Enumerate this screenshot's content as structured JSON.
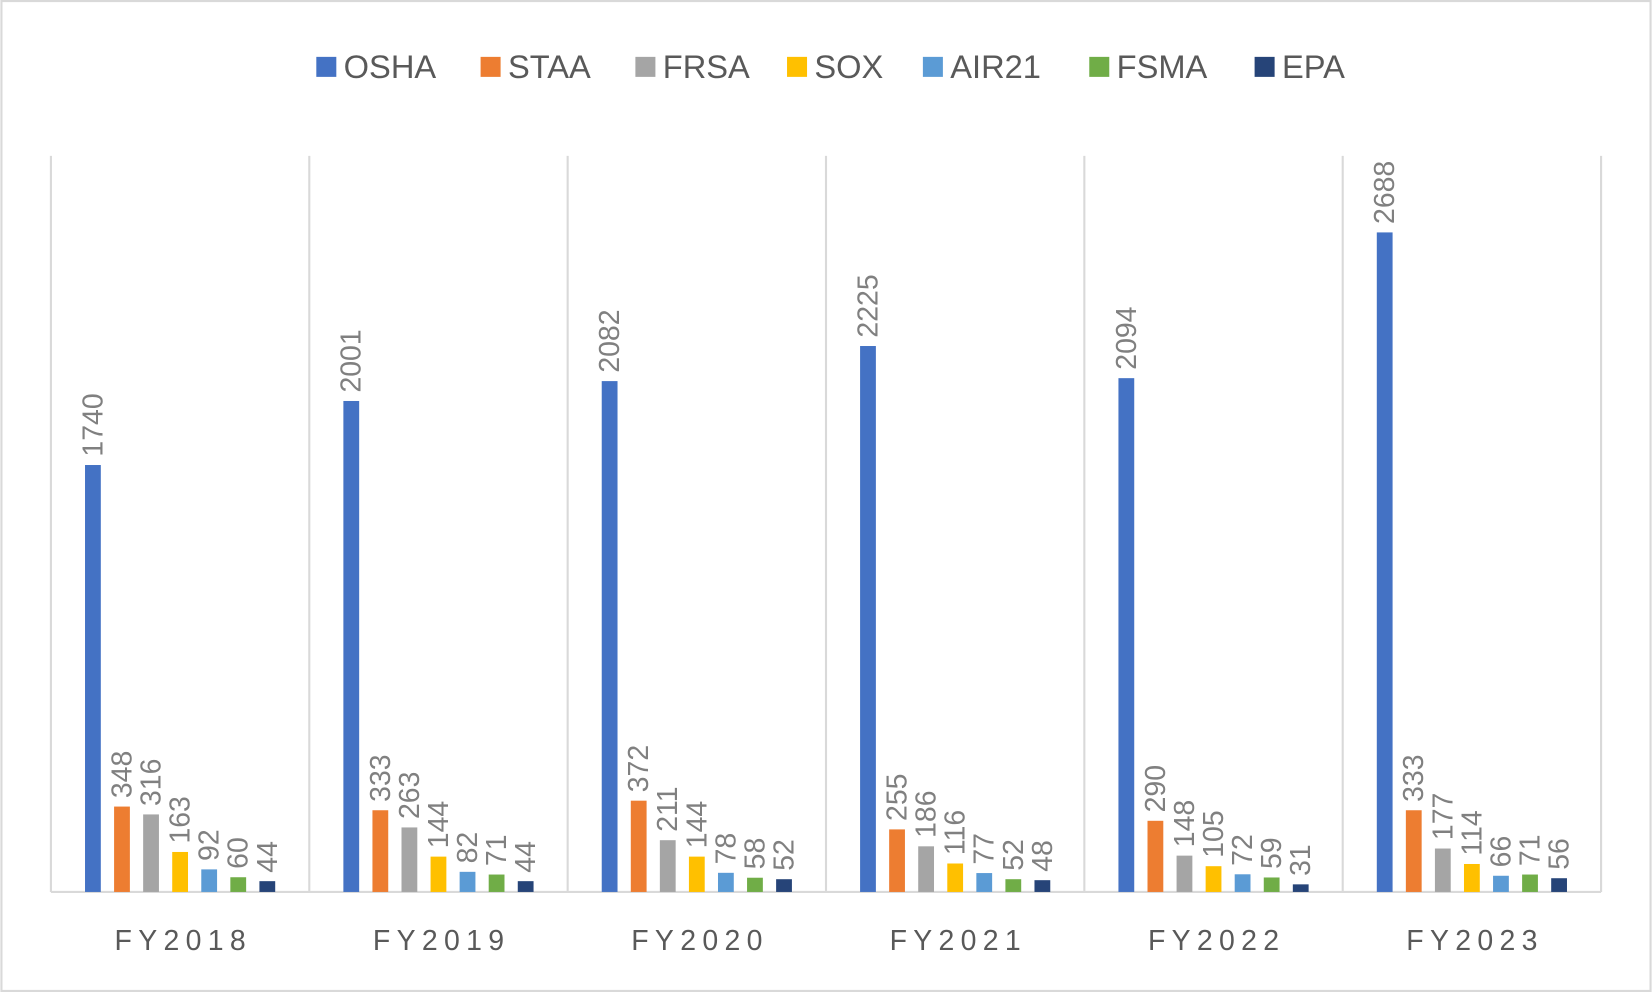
{
  "chart_data": {
    "type": "bar",
    "title": "",
    "xlabel": "",
    "ylabel": "",
    "ylim": [
      0,
      3000
    ],
    "grid": "vertical category separators",
    "legend_position": "top",
    "categories": [
      "FY2018",
      "FY2019",
      "FY2020",
      "FY2021",
      "FY2022",
      "FY2023"
    ],
    "series": [
      {
        "name": "OSHA",
        "color": "#4472C4",
        "values": [
          1740,
          2001,
          2082,
          2225,
          2094,
          2688
        ]
      },
      {
        "name": "STAA",
        "color": "#ED7D31",
        "values": [
          348,
          333,
          372,
          255,
          290,
          333
        ]
      },
      {
        "name": "FRSA",
        "color": "#A5A5A5",
        "values": [
          316,
          263,
          211,
          186,
          148,
          177
        ]
      },
      {
        "name": "SOX",
        "color": "#FFC000",
        "values": [
          163,
          144,
          144,
          116,
          105,
          114
        ]
      },
      {
        "name": "AIR21",
        "color": "#5B9BD5",
        "values": [
          92,
          82,
          78,
          77,
          72,
          66
        ]
      },
      {
        "name": "FSMA",
        "color": "#70AD47",
        "values": [
          60,
          71,
          58,
          52,
          59,
          71
        ]
      },
      {
        "name": "EPA",
        "color": "#264478",
        "values": [
          44,
          44,
          52,
          48,
          31,
          56
        ]
      }
    ]
  }
}
